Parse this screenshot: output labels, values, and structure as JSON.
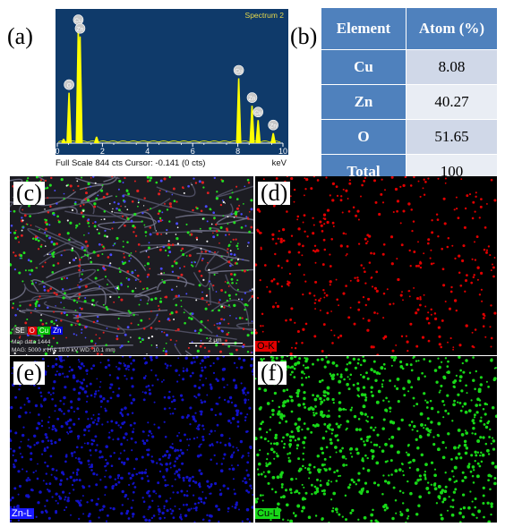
{
  "panels": {
    "a": "(a)",
    "b": "(b)",
    "c": "(c)",
    "d": "(d)",
    "e": "(e)",
    "f": "(f)"
  },
  "chart_data": {
    "type": "line",
    "title": "Spectrum 2",
    "xlabel": "keV",
    "ylabel": "",
    "xlim": [
      0,
      10
    ],
    "x_ticks": [
      "0",
      "2",
      "4",
      "6",
      "8",
      "10"
    ],
    "footer": "Full Scale 844 cts Cursor: -0.141  (0 cts)",
    "peaks": [
      {
        "label": "O",
        "x": 0.52,
        "y": 350
      },
      {
        "label": "Cu",
        "x": 0.93,
        "y": 800
      },
      {
        "label": "Zn",
        "x": 1.01,
        "y": 740
      },
      {
        "label": "",
        "x": 1.74,
        "y": 45
      },
      {
        "label": "",
        "x": 0.28,
        "y": 30
      },
      {
        "label": "Cu",
        "x": 8.04,
        "y": 450
      },
      {
        "label": "Zn",
        "x": 8.63,
        "y": 260
      },
      {
        "label": "Cu",
        "x": 8.9,
        "y": 160
      },
      {
        "label": "Zn",
        "x": 9.57,
        "y": 70
      }
    ],
    "colors": {
      "background": "#0f3a6a",
      "spectrum": "#ffff00",
      "title": "#e6d84a"
    }
  },
  "table": {
    "headers": [
      "Element",
      "Atom (%)"
    ],
    "rows": [
      {
        "element": "Cu",
        "value": "8.08"
      },
      {
        "element": "Zn",
        "value": "40.27"
      },
      {
        "element": "O",
        "value": "51.65"
      },
      {
        "element": "Total",
        "value": "100"
      }
    ]
  },
  "maps": {
    "c": {
      "legend": [
        "SE",
        "O",
        "Cu",
        "Zn"
      ],
      "legend_colors": [
        "#444444",
        "#e00000",
        "#00c000",
        "#0000e0"
      ],
      "meta1": "Map data 1444",
      "meta2": "MAG: 5000 x  HV: 10.0 kV  WD: 10.1 mm",
      "scale": "2 μm"
    },
    "d": {
      "tag": "O-K",
      "color": "#e00000"
    },
    "e": {
      "tag": "Zn-L",
      "color": "#1a1aff"
    },
    "f": {
      "tag": "Cu-L",
      "color": "#18d818"
    }
  }
}
